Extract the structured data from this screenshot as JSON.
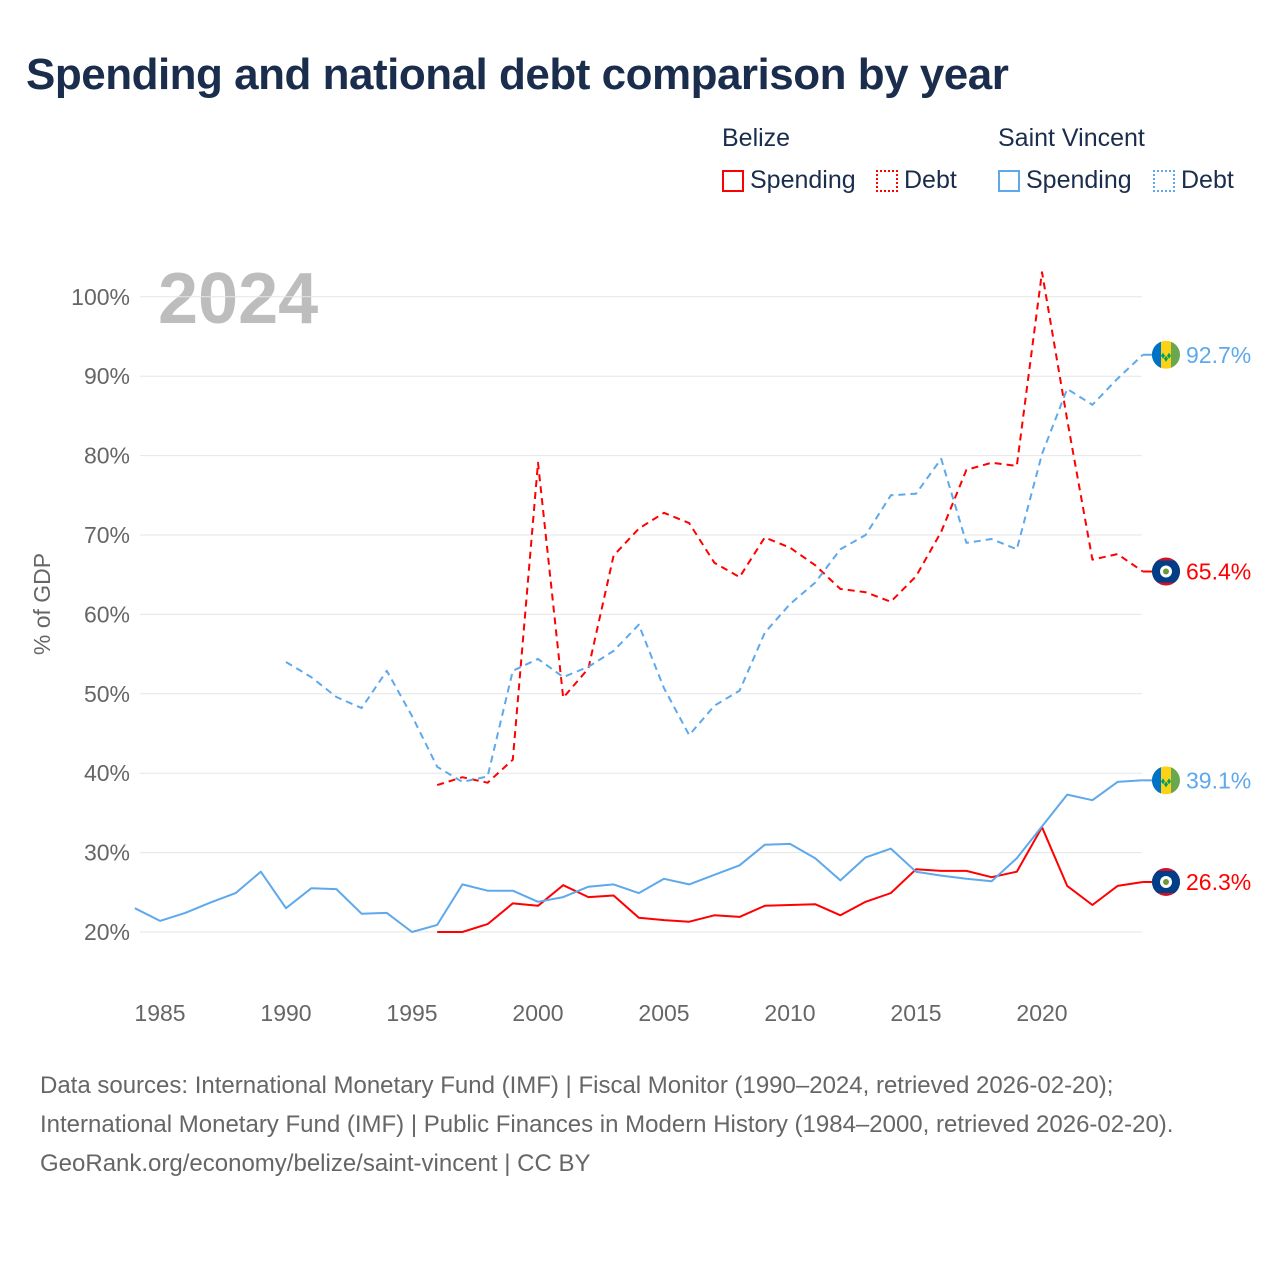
{
  "title": "Spending and national debt comparison by year",
  "legend": {
    "groups": [
      {
        "name": "Belize",
        "items": [
          {
            "label": "Spending",
            "style": "solid"
          },
          {
            "label": "Debt",
            "style": "dotted"
          }
        ],
        "color": "#ff0000"
      },
      {
        "name": "Saint Vincent",
        "items": [
          {
            "label": "Spending",
            "style": "solid"
          },
          {
            "label": "Debt",
            "style": "dotted"
          }
        ],
        "color": "#5ea8ec"
      }
    ]
  },
  "footer": {
    "line1": "Data sources: International Monetary Fund (IMF) | Fiscal Monitor (1990–2024, retrieved 2026-02-20); International Monetary Fund (IMF) | Public Finances in Modern History (1984–2000, retrieved 2026-02-20).",
    "line2": "GeoRank.org/economy/belize/saint-vincent | CC BY"
  },
  "chart_data": {
    "type": "line",
    "year_label": "2024",
    "ylabel": "% of GDP",
    "ylim": [
      20,
      100
    ],
    "xlim": [
      1984,
      2024
    ],
    "yticks": [
      20,
      30,
      40,
      50,
      60,
      70,
      80,
      90,
      100
    ],
    "ytick_labels": [
      "20%",
      "30%",
      "40%",
      "50%",
      "60%",
      "70%",
      "80%",
      "90%",
      "100%"
    ],
    "xticks": [
      1985,
      1990,
      1995,
      2000,
      2005,
      2010,
      2015,
      2020
    ],
    "grid": true,
    "series": [
      {
        "name": "Belize Spending",
        "color": "#ff0000",
        "dash": false,
        "start": 1996,
        "end_label": "26.3%",
        "flag": "belize",
        "values": [
          20.0,
          20.0,
          21.0,
          23.6,
          23.3,
          25.9,
          24.4,
          24.6,
          21.8,
          21.5,
          21.3,
          22.1,
          21.9,
          23.3,
          23.4,
          23.5,
          22.1,
          23.8,
          24.9,
          27.9,
          27.7,
          27.7,
          26.9,
          27.6,
          33.2,
          25.8,
          23.4,
          25.8,
          26.3
        ]
      },
      {
        "name": "Belize Debt",
        "color": "#ff0000",
        "dash": true,
        "start": 1996,
        "end_label": "65.4%",
        "flag": "belize",
        "values": [
          38.5,
          39.5,
          38.8,
          41.7,
          79.1,
          49.5,
          53.2,
          67.4,
          70.8,
          72.8,
          71.5,
          66.5,
          64.7,
          69.7,
          68.4,
          66.2,
          63.2,
          62.8,
          61.6,
          64.8,
          70.4,
          78.2,
          79.1,
          78.7,
          103.1,
          84.5,
          66.9,
          67.6,
          65.4
        ]
      },
      {
        "name": "Saint Vincent Spending",
        "color": "#5ea8ec",
        "dash": false,
        "start": 1984,
        "end_label": "39.1%",
        "flag": "svg",
        "values": [
          23.0,
          21.4,
          22.4,
          23.7,
          24.9,
          27.6,
          23.0,
          25.5,
          25.4,
          22.3,
          22.4,
          20.0,
          20.9,
          26.0,
          25.2,
          25.2,
          23.8,
          24.4,
          25.7,
          26.0,
          24.9,
          26.7,
          26.0,
          27.2,
          28.4,
          31.0,
          31.1,
          29.3,
          26.5,
          29.4,
          30.5,
          27.6,
          27.1,
          26.7,
          26.4,
          29.3,
          33.3,
          37.3,
          36.6,
          38.9,
          39.1
        ]
      },
      {
        "name": "Saint Vincent Debt",
        "color": "#5ea8ec",
        "dash": true,
        "start": 1990,
        "end_label": "92.7%",
        "flag": "svg",
        "values": [
          54.0,
          52.1,
          49.6,
          48.2,
          52.9,
          47.2,
          40.8,
          38.9,
          39.6,
          52.9,
          54.4,
          52.1,
          53.4,
          55.4,
          58.7,
          50.7,
          44.8,
          48.5,
          50.4,
          57.7,
          61.3,
          64.0,
          68.2,
          70.0,
          75.0,
          75.2,
          79.6,
          69.0,
          69.5,
          68.2,
          80.2,
          88.4,
          86.4,
          89.7,
          92.7
        ]
      }
    ]
  }
}
